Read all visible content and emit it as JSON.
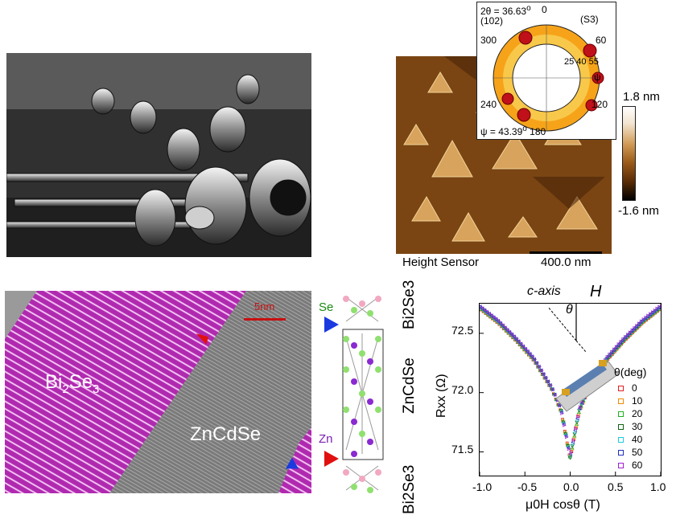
{
  "afm": {
    "caption": "Height Sensor",
    "scale_bar": "400.0 nm",
    "colorbar_max": "1.8 nm",
    "colorbar_min": "-1.6 nm"
  },
  "pole_figure": {
    "two_theta": "2θ = 36.63",
    "degree_mark": "o",
    "plane": "(102)",
    "sample": "(S3)",
    "psi_value": "ψ = 43.39",
    "angles": [
      "0",
      "60",
      "120",
      "180",
      "240",
      "300"
    ],
    "radial_ticks": "25 40 55",
    "psi_axis": "ψ"
  },
  "tem": {
    "scale_bar": "5nm",
    "bi2se3_label": "Bi",
    "bi2se3_sub1": "2",
    "bi2se3_mid": "Se",
    "bi2se3_sub2": "3",
    "zncdse_label": "ZnCdSe"
  },
  "structure": {
    "se_label": "Se",
    "zn_label": "Zn",
    "layer_top": "Bi2Se3",
    "layer_mid": "ZnCdSe",
    "layer_bot": "Bi2Se3"
  },
  "chart_data": {
    "type": "scatter",
    "xlabel": "μ0H cosθ (T)",
    "ylabel": "Rxx (Ω)",
    "xlim": [
      -1.0,
      1.0
    ],
    "ylim": [
      71.3,
      72.75
    ],
    "xticks": [
      "-1.0",
      "-0.5",
      "0.0",
      "0.5",
      "1.0"
    ],
    "yticks": [
      "71.5",
      "72.0",
      "72.5"
    ],
    "annotation_c_axis": "c-axis",
    "annotation_h": "H",
    "annotation_theta": "θ",
    "legend_title": "θ(deg)",
    "series": [
      {
        "name": "0",
        "color": "#e02020",
        "marker": "square"
      },
      {
        "name": "10",
        "color": "#f08a00",
        "marker": "circle"
      },
      {
        "name": "20",
        "color": "#20b020",
        "marker": "triangle-up"
      },
      {
        "name": "30",
        "color": "#106010",
        "marker": "triangle-down"
      },
      {
        "name": "40",
        "color": "#20c8e0",
        "marker": "diamond"
      },
      {
        "name": "50",
        "color": "#2030c0",
        "marker": "triangle-left"
      },
      {
        "name": "60",
        "color": "#a020d0",
        "marker": "triangle-right"
      }
    ],
    "curve": {
      "x": [
        -1.0,
        -0.8,
        -0.6,
        -0.4,
        -0.2,
        -0.1,
        0.0,
        0.1,
        0.2,
        0.4,
        0.6,
        0.8,
        1.0
      ],
      "y": [
        72.72,
        72.6,
        72.45,
        72.28,
        72.03,
        71.85,
        71.45,
        71.85,
        72.03,
        72.28,
        72.45,
        72.6,
        72.72
      ]
    }
  }
}
